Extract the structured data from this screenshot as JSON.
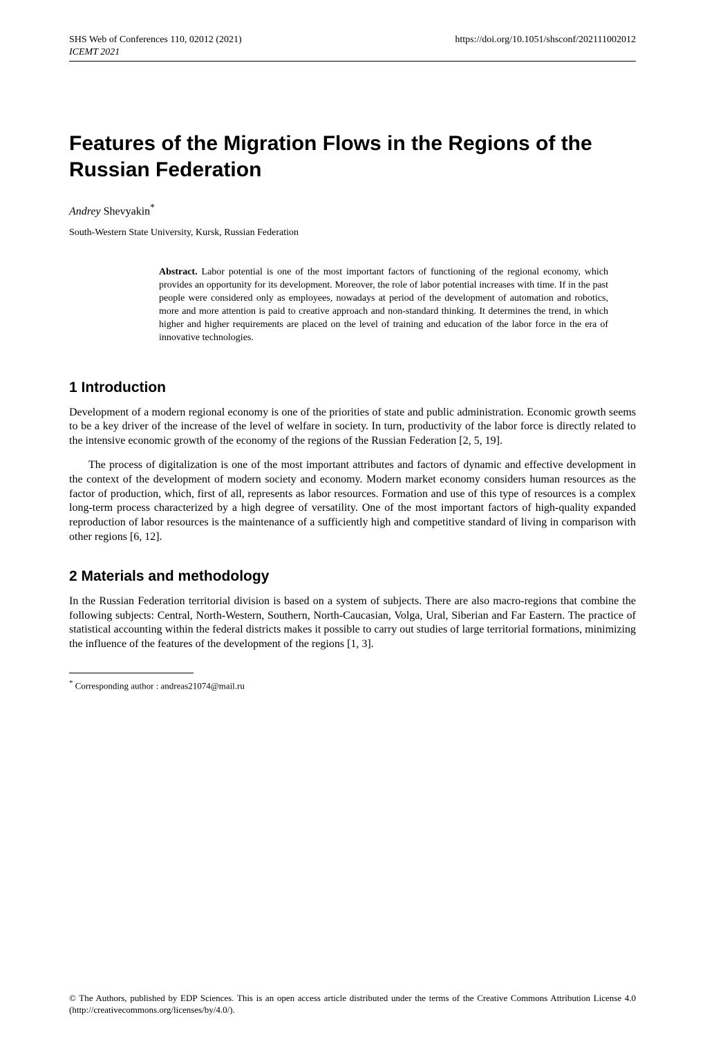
{
  "header": {
    "journal_line": "SHS Web of Conferences 110, 02012 (2021)",
    "doi": "https://doi.org/10.1051/shsconf/202111002012",
    "conference": "ICEMT 2021"
  },
  "title": "Features of the Migration Flows in the Regions of the Russian Federation",
  "author": {
    "first_name": "Andrey",
    "last_name": "Shevyakin",
    "marker": "*"
  },
  "affiliation": "South-Western State University, Kursk, Russian Federation",
  "abstract": {
    "label": "Abstract.",
    "text": " Labor potential is one of the most important factors of functioning of the regional economy, which provides an opportunity for its development. Moreover, the role of labor potential increases with time. If in the past people were considered only as employees, nowadays at period of the development of automation and robotics, more and more attention is paid to creative approach and non-standard thinking. It determines the trend, in which higher and higher requirements are placed on the level of training and education of the labor force in the era of innovative technologies."
  },
  "sections": {
    "s1": {
      "heading": "1 Introduction",
      "p1": "Development of a modern regional economy is one of the priorities of state and public administration. Economic growth seems to be a key driver of the increase of the level of welfare in society. In turn, productivity of the labor force is directly related to the intensive economic growth of the economy of the regions of the Russian Federation [2, 5, 19].",
      "p2": "The process of digitalization is one of the most important attributes and factors of dynamic and effective development in the context of the development of modern society and economy. Modern market economy considers human resources as the factor of production, which, first of all, represents as labor resources. Formation and use of this type of resources is a complex long-term process characterized by a high degree of versatility. One of the most important factors of high-quality expanded reproduction of labor resources is the maintenance of a sufficiently high and competitive standard of living in comparison with other regions [6, 12]."
    },
    "s2": {
      "heading": "2 Materials and methodology",
      "p1": "In the Russian Federation territorial division is based on a system of subjects. There are also macro-regions that combine the following subjects: Central, North-Western, Southern, North-Caucasian, Volga, Ural, Siberian and Far Eastern. The practice of statistical accounting within the federal districts makes it possible to carry out studies of large territorial formations, minimizing the influence of the features of the development of the regions [1, 3]."
    }
  },
  "footnote": {
    "marker": "*",
    "text": " Corresponding author : andreas21074@mail.ru"
  },
  "license": "© The Authors, published by EDP Sciences. This is an open access article distributed under the terms of the Creative Commons Attribution License 4.0 (http://creativecommons.org/licenses/by/4.0/)."
}
